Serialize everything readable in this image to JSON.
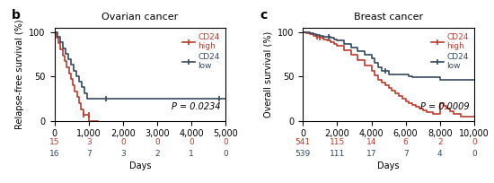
{
  "chart_data": [
    {
      "type": "step",
      "panel_label": "b",
      "title": "Ovarian cancer",
      "ylabel": "Relapse-free survival (%)",
      "xlabel": "Days",
      "xlim": [
        0,
        5000
      ],
      "ylim": [
        0,
        105
      ],
      "xticks": [
        0,
        {
          "value": 1000,
          "label": "1,000"
        },
        {
          "value": 2000,
          "label": "2,000"
        },
        {
          "value": 3000,
          "label": "3,000"
        },
        {
          "value": 4000,
          "label": "4,000"
        },
        {
          "value": 5000,
          "label": "5,000"
        }
      ],
      "yticks": [
        0,
        50,
        100
      ],
      "annotations": [
        "P = 0.0234"
      ],
      "legend": "upper right",
      "at_risk_x": [
        0,
        1000,
        2000,
        3000,
        4000,
        5000
      ],
      "series": [
        {
          "name": "CD24\nhigh",
          "color": "#c0392b",
          "marker": "vline",
          "x": [
            0,
            60,
            120,
            180,
            240,
            300,
            360,
            420,
            480,
            540,
            600,
            660,
            720,
            780,
            840,
            900,
            960,
            1020,
            1080,
            1140,
            1200,
            1260
          ],
          "values": [
            100,
            93,
            87,
            80,
            73,
            67,
            60,
            53,
            47,
            40,
            33,
            27,
            20,
            13,
            7,
            7,
            7,
            0,
            0,
            0,
            0,
            0
          ],
          "censor_x": [
            850,
            1000
          ],
          "censor_y": [
            7,
            7
          ],
          "at_risk": [
            15,
            3,
            0,
            0,
            0,
            0
          ]
        },
        {
          "name": "CD24\nlow",
          "color": "#34495e",
          "marker": "vline",
          "x": [
            0,
            80,
            160,
            240,
            320,
            400,
            480,
            560,
            640,
            720,
            800,
            880,
            960,
            1040,
            1120,
            1200,
            1280,
            1360,
            1440,
            1520,
            1600,
            4800,
            5000
          ],
          "values": [
            100,
            94,
            88,
            81,
            75,
            69,
            63,
            56,
            50,
            44,
            38,
            31,
            25,
            25,
            25,
            25,
            25,
            25,
            25,
            25,
            25,
            25,
            25
          ],
          "censor_x": [
            1500,
            4800
          ],
          "censor_y": [
            25,
            25
          ],
          "at_risk": [
            16,
            7,
            3,
            2,
            1,
            0
          ]
        }
      ]
    },
    {
      "type": "step",
      "panel_label": "c",
      "title": "Breast cancer",
      "ylabel": "Overall survival (%)",
      "xlabel": "Days",
      "xlim": [
        0,
        10000
      ],
      "ylim": [
        0,
        105
      ],
      "xticks": [
        0,
        {
          "value": 2000,
          "label": "2,000"
        },
        {
          "value": 4000,
          "label": "4,000"
        },
        {
          "value": 6000,
          "label": "6,000"
        },
        {
          "value": 8000,
          "label": "8,000"
        },
        {
          "value": 10000,
          "label": "10,000"
        }
      ],
      "yticks": [
        0,
        50,
        100
      ],
      "annotations": [
        "P = 0.0009"
      ],
      "legend": "upper right",
      "at_risk_x": [
        0,
        2000,
        4000,
        6000,
        8000,
        10000
      ],
      "series": [
        {
          "name": "CD24\nhigh",
          "color": "#c0392b",
          "marker": "vline",
          "x": [
            0,
            200,
            400,
            600,
            800,
            1000,
            1200,
            1400,
            1600,
            1800,
            2000,
            2400,
            2800,
            3200,
            3600,
            4000,
            4200,
            4400,
            4600,
            4800,
            5000,
            5200,
            5400,
            5600,
            5800,
            6000,
            6200,
            6400,
            6600,
            6800,
            7000,
            7200,
            7600,
            8000,
            8200,
            8400,
            8600,
            8800,
            9200,
            10000
          ],
          "values": [
            100,
            99,
            98,
            96,
            95,
            93,
            91,
            90,
            88,
            86,
            84,
            79,
            74,
            68,
            62,
            56,
            51,
            46,
            43,
            40,
            37,
            34,
            31,
            28,
            25,
            22,
            20,
            18,
            16,
            14,
            12,
            10,
            8,
            20,
            17,
            14,
            11,
            8,
            5,
            5
          ],
          "censor_x": [
            850,
            1000
          ],
          "censor_y": [
            95,
            93
          ],
          "at_risk": [
            541,
            115,
            14,
            6,
            2,
            0
          ]
        },
        {
          "name": "CD24\nlow",
          "color": "#34495e",
          "marker": "vline",
          "x": [
            0,
            200,
            400,
            600,
            800,
            1000,
            1200,
            1400,
            1600,
            1800,
            2000,
            2400,
            2800,
            3200,
            3600,
            4000,
            4200,
            4400,
            4600,
            5000,
            5200,
            5400,
            5600,
            6000,
            6200,
            6400,
            6600,
            6800,
            7000,
            7200,
            7600,
            8000,
            8200,
            8400,
            8600,
            8800,
            9200,
            10000
          ],
          "values": [
            100,
            100,
            99,
            98,
            97,
            96,
            95,
            94,
            93,
            91,
            90,
            86,
            82,
            78,
            74,
            70,
            65,
            60,
            56,
            52,
            52,
            52,
            52,
            52,
            50,
            49,
            49,
            49,
            49,
            49,
            49,
            46,
            46,
            46,
            46,
            46,
            46,
            46
          ],
          "censor_x": [
            1500,
            4800
          ],
          "censor_y": [
            94,
            56
          ],
          "at_risk": [
            539,
            111,
            17,
            7,
            4,
            0
          ]
        }
      ]
    }
  ]
}
